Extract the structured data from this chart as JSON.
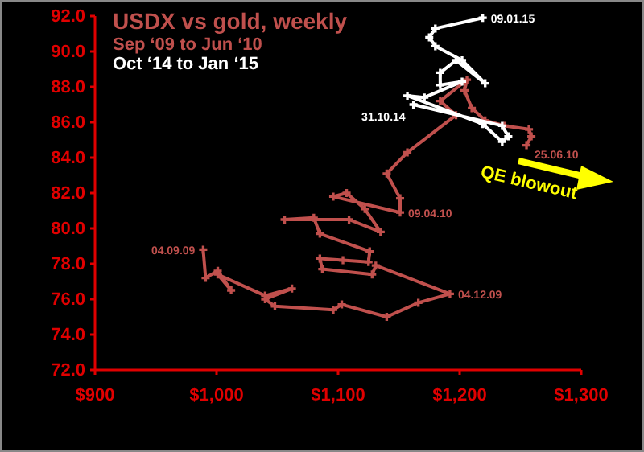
{
  "chart_data": {
    "type": "line",
    "title": "USDX vs gold, weekly",
    "legend": "top left",
    "marker": "cross",
    "line_style": "solid",
    "xlim": [
      900,
      1300
    ],
    "xticks": [
      {
        "value": 900,
        "label": "$900"
      },
      {
        "value": 1000,
        "label": "$1,000"
      },
      {
        "value": 1100,
        "label": "$1,100"
      },
      {
        "value": 1200,
        "label": "$1,200"
      },
      {
        "value": 1300,
        "label": "$1,300"
      }
    ],
    "ylim": [
      72,
      92
    ],
    "yticks": [
      {
        "value": 72,
        "label": "72.0"
      },
      {
        "value": 74,
        "label": "74.0"
      },
      {
        "value": 76,
        "label": "76.0"
      },
      {
        "value": 78,
        "label": "78.0"
      },
      {
        "value": 80,
        "label": "80.0"
      },
      {
        "value": 82,
        "label": "82.0"
      },
      {
        "value": 84,
        "label": "84.0"
      },
      {
        "value": 86,
        "label": "86.0"
      },
      {
        "value": 88,
        "label": "88.0"
      },
      {
        "value": 90,
        "label": "90.0"
      },
      {
        "value": 92,
        "label": "92.0"
      }
    ],
    "series": [
      {
        "name": "Sep ‘09 to Jun ‘10",
        "color": "#c0504d",
        "x": [
          989,
          991,
          1001,
          1012,
          1001,
          1040,
          1062,
          1040,
          1048,
          1096,
          1103,
          1140,
          1166,
          1192,
          1131,
          1128,
          1087,
          1085,
          1104,
          1125,
          1126,
          1085,
          1080,
          1056,
          1109,
          1135,
          1122,
          1107,
          1096,
          1151,
          1151,
          1140,
          1157,
          1197,
          1184,
          1206,
          1204,
          1210,
          1221,
          1237,
          1257,
          1259,
          1255
        ],
        "values": [
          78.8,
          77.2,
          77.6,
          76.5,
          77.4,
          76.2,
          76.6,
          76.0,
          75.6,
          75.4,
          75.7,
          75.0,
          75.8,
          76.3,
          77.9,
          77.4,
          77.7,
          78.3,
          78.2,
          78.1,
          78.7,
          79.7,
          80.6,
          80.5,
          80.5,
          79.8,
          81.1,
          82.0,
          81.8,
          80.9,
          81.7,
          83.1,
          84.3,
          86.4,
          87.2,
          88.4,
          87.8,
          86.8,
          86.1,
          85.8,
          85.6,
          85.2,
          84.7
        ]
      },
      {
        "name": "Oct ‘14 to Jan ‘15",
        "color": "#ffffff",
        "x": [
          1162,
          1235,
          1240,
          1235,
          1219,
          1157,
          1171,
          1202,
          1184,
          1184,
          1197,
          1221,
          1202,
          1180,
          1175,
          1180,
          1219
        ],
        "values": [
          87.0,
          85.8,
          85.2,
          84.9,
          85.9,
          87.5,
          87.4,
          88.3,
          88.1,
          88.8,
          89.5,
          88.2,
          89.5,
          90.3,
          90.8,
          91.3,
          91.9
        ]
      }
    ],
    "annotations": [
      {
        "text": "04.09.09",
        "x": 989,
        "y": 78.8
      },
      {
        "text": "04.12.09",
        "x": 1192,
        "y": 76.3
      },
      {
        "text": "09.04.10",
        "x": 1151,
        "y": 80.9
      },
      {
        "text": "25.06.10",
        "x": 1255,
        "y": 84.7
      },
      {
        "text": "31.10.14",
        "x": 1162,
        "y": 87.0
      },
      {
        "text": "09.01.15",
        "x": 1219,
        "y": 91.9
      },
      "QE blowout"
    ]
  }
}
